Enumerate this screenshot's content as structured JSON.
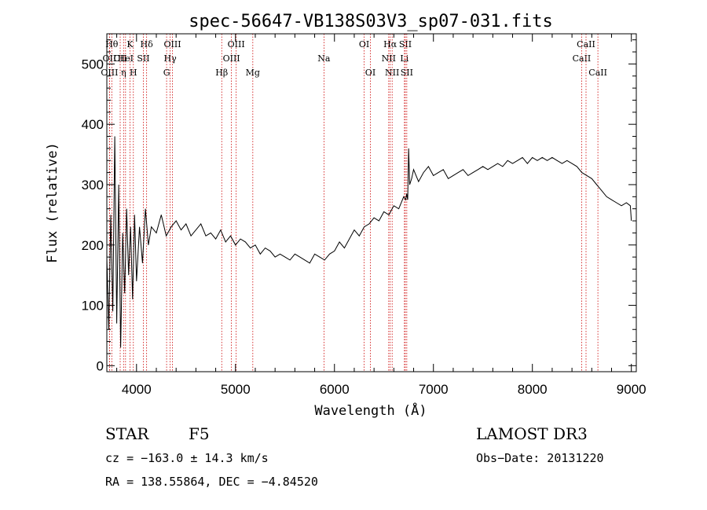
{
  "chart_data": {
    "type": "line",
    "title": "spec-56647-VB138S03V3_sp07-031.fits",
    "xlabel": "Wavelength (Å)",
    "ylabel": "Flux (relative)",
    "xlim": [
      3700,
      9050
    ],
    "ylim": [
      -10,
      550
    ],
    "xticks": [
      4000,
      5000,
      6000,
      7000,
      8000,
      9000
    ],
    "yticks": [
      0,
      100,
      200,
      300,
      400,
      500
    ],
    "grid": false,
    "series": [
      {
        "name": "flux",
        "x": [
          3700,
          3720,
          3740,
          3760,
          3780,
          3800,
          3820,
          3840,
          3860,
          3880,
          3900,
          3920,
          3940,
          3960,
          3980,
          4000,
          4030,
          4060,
          4090,
          4120,
          4150,
          4200,
          4250,
          4300,
          4350,
          4400,
          4450,
          4500,
          4550,
          4600,
          4650,
          4700,
          4750,
          4800,
          4850,
          4900,
          4950,
          5000,
          5050,
          5100,
          5150,
          5200,
          5250,
          5300,
          5350,
          5400,
          5450,
          5500,
          5550,
          5600,
          5650,
          5700,
          5750,
          5800,
          5850,
          5900,
          5950,
          6000,
          6050,
          6100,
          6150,
          6200,
          6250,
          6300,
          6350,
          6400,
          6450,
          6500,
          6550,
          6600,
          6650,
          6700,
          6720,
          6730,
          6740,
          6750,
          6760,
          6780,
          6800,
          6850,
          6900,
          6950,
          7000,
          7050,
          7100,
          7150,
          7200,
          7250,
          7300,
          7350,
          7400,
          7450,
          7500,
          7550,
          7600,
          7650,
          7700,
          7750,
          7800,
          7850,
          7900,
          7950,
          8000,
          8050,
          8100,
          8150,
          8200,
          8250,
          8300,
          8350,
          8400,
          8450,
          8500,
          8550,
          8600,
          8650,
          8700,
          8750,
          8800,
          8850,
          8900,
          8950,
          8990,
          9000
        ],
        "y": [
          180,
          60,
          250,
          90,
          380,
          70,
          300,
          30,
          220,
          120,
          260,
          150,
          230,
          110,
          250,
          140,
          230,
          170,
          260,
          200,
          230,
          220,
          250,
          215,
          230,
          240,
          225,
          235,
          215,
          225,
          235,
          215,
          220,
          210,
          225,
          205,
          215,
          200,
          210,
          205,
          195,
          200,
          185,
          195,
          190,
          180,
          185,
          180,
          175,
          185,
          180,
          175,
          170,
          185,
          180,
          175,
          185,
          190,
          205,
          195,
          210,
          225,
          215,
          230,
          235,
          245,
          240,
          255,
          250,
          265,
          260,
          280,
          275,
          285,
          275,
          360,
          300,
          310,
          325,
          305,
          320,
          330,
          315,
          320,
          325,
          310,
          315,
          320,
          325,
          315,
          320,
          325,
          330,
          325,
          330,
          335,
          330,
          340,
          335,
          340,
          345,
          335,
          345,
          340,
          345,
          340,
          345,
          340,
          335,
          340,
          335,
          330,
          320,
          315,
          310,
          300,
          290,
          280,
          275,
          270,
          265,
          270,
          265,
          240
        ]
      }
    ],
    "line_markers": [
      {
        "wavelength": 3750,
        "label": "Hθ",
        "tier": 0
      },
      {
        "wavelength": 3727,
        "label": "OII",
        "tier": 1
      },
      {
        "wavelength": 3727,
        "label": "OIII",
        "tier": 2
      },
      {
        "wavelength": 3835,
        "label": "CII",
        "tier": 1
      },
      {
        "wavelength": 3889,
        "label": "HeI",
        "tier": 1
      },
      {
        "wavelength": 3869,
        "label": "η",
        "tier": 2
      },
      {
        "wavelength": 3934,
        "label": "K",
        "tier": 0
      },
      {
        "wavelength": 3968,
        "label": "H",
        "tier": 2
      },
      {
        "wavelength": 4069,
        "label": "SII",
        "tier": 1
      },
      {
        "wavelength": 4102,
        "label": "Hδ",
        "tier": 0
      },
      {
        "wavelength": 4340,
        "label": "Hγ",
        "tier": 1
      },
      {
        "wavelength": 4304,
        "label": "G",
        "tier": 2
      },
      {
        "wavelength": 4363,
        "label": "OIII",
        "tier": 0
      },
      {
        "wavelength": 4861,
        "label": "Hβ",
        "tier": 2
      },
      {
        "wavelength": 4959,
        "label": "OIII",
        "tier": 1
      },
      {
        "wavelength": 5007,
        "label": "OIII",
        "tier": 0
      },
      {
        "wavelength": 5175,
        "label": "Mg",
        "tier": 2
      },
      {
        "wavelength": 5894,
        "label": "Na",
        "tier": 1
      },
      {
        "wavelength": 6300,
        "label": "OI",
        "tier": 0
      },
      {
        "wavelength": 6363,
        "label": "OI",
        "tier": 2
      },
      {
        "wavelength": 6548,
        "label": "NII",
        "tier": 1
      },
      {
        "wavelength": 6583,
        "label": "NII",
        "tier": 2
      },
      {
        "wavelength": 6563,
        "label": "Hα",
        "tier": 0
      },
      {
        "wavelength": 6716,
        "label": "SII",
        "tier": 0
      },
      {
        "wavelength": 6707,
        "label": "Li",
        "tier": 1
      },
      {
        "wavelength": 6731,
        "label": "SII",
        "tier": 2
      },
      {
        "wavelength": 8498,
        "label": "CaII",
        "tier": 1
      },
      {
        "wavelength": 8542,
        "label": "CaII",
        "tier": 0
      },
      {
        "wavelength": 8662,
        "label": "CaII",
        "tier": 2
      }
    ]
  },
  "info": {
    "class_label": "STAR",
    "subclass": "F5",
    "survey": "LAMOST DR3",
    "cz": "cz = −163.0 ± 14.3 km/s",
    "obs_date": "Obs−Date: 20131220",
    "coords": "RA = 138.55864, DEC =  −4.84520"
  },
  "colors": {
    "spectrum": "#000000",
    "marker": "#cc0000",
    "axis": "#000000"
  }
}
